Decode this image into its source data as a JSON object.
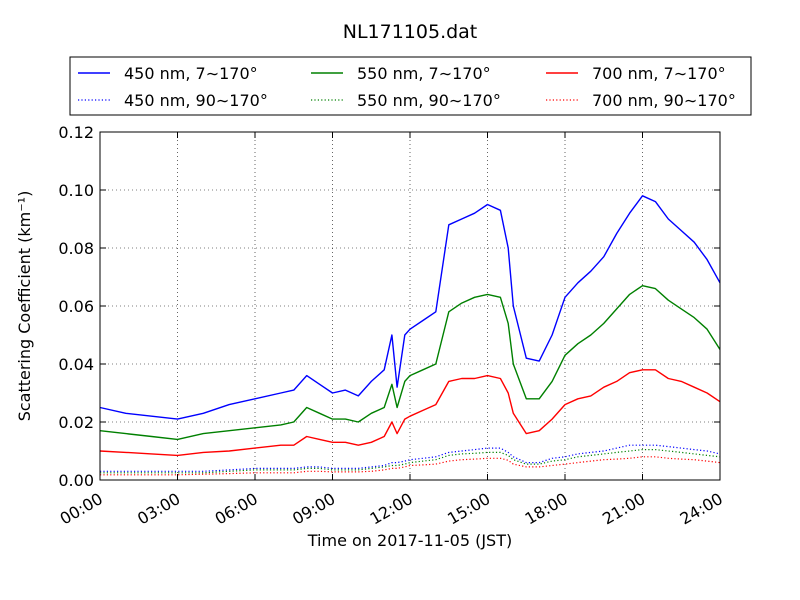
{
  "chart_data": {
    "type": "line",
    "title": "NL171105.dat",
    "xlabel": "Time on 2017-11-05 (JST)",
    "ylabel": "Scattering Coefficient (km⁻¹)",
    "x_unit": "hours",
    "xlim": [
      0,
      24
    ],
    "ylim": [
      0,
      0.12
    ],
    "xticks": [
      0,
      3,
      6,
      9,
      12,
      15,
      18,
      21,
      24
    ],
    "xtick_labels": [
      "00:00",
      "03:00",
      "06:00",
      "09:00",
      "12:00",
      "15:00",
      "18:00",
      "21:00",
      "24:00"
    ],
    "yticks": [
      0,
      0.02,
      0.04,
      0.06,
      0.08,
      0.1,
      0.12
    ],
    "ytick_labels": [
      "0.00",
      "0.02",
      "0.04",
      "0.06",
      "0.08",
      "0.10",
      "0.12"
    ],
    "grid": true,
    "legend_position": "top (above plot), 3 columns",
    "x": [
      0,
      1,
      2,
      3,
      4,
      5,
      6,
      7,
      7.5,
      8,
      8.5,
      9,
      9.5,
      10,
      10.5,
      11,
      11.3,
      11.5,
      11.8,
      12,
      12.5,
      13,
      13.5,
      14,
      14.5,
      15,
      15.5,
      15.8,
      16,
      16.5,
      17,
      17.5,
      18,
      18.5,
      19,
      19.5,
      20,
      20.5,
      21,
      21.5,
      22,
      22.5,
      23,
      23.5,
      24
    ],
    "series": [
      {
        "name": "450 nm, 7∼170°",
        "color": "#0000ff",
        "style": "solid",
        "values": [
          0.025,
          0.023,
          0.022,
          0.021,
          0.023,
          0.026,
          0.028,
          0.03,
          0.031,
          0.036,
          0.033,
          0.03,
          0.031,
          0.029,
          0.034,
          0.038,
          0.05,
          0.032,
          0.05,
          0.052,
          0.055,
          0.058,
          0.088,
          0.09,
          0.092,
          0.095,
          0.093,
          0.08,
          0.06,
          0.042,
          0.041,
          0.05,
          0.063,
          0.068,
          0.072,
          0.077,
          0.085,
          0.092,
          0.098,
          0.096,
          0.09,
          0.086,
          0.082,
          0.076,
          0.068
        ]
      },
      {
        "name": "550 nm, 7∼170°",
        "color": "#008000",
        "style": "solid",
        "values": [
          0.017,
          0.016,
          0.015,
          0.014,
          0.016,
          0.017,
          0.018,
          0.019,
          0.02,
          0.025,
          0.023,
          0.021,
          0.021,
          0.02,
          0.023,
          0.025,
          0.033,
          0.025,
          0.034,
          0.036,
          0.038,
          0.04,
          0.058,
          0.061,
          0.063,
          0.064,
          0.063,
          0.054,
          0.04,
          0.028,
          0.028,
          0.034,
          0.043,
          0.047,
          0.05,
          0.054,
          0.059,
          0.064,
          0.067,
          0.066,
          0.062,
          0.059,
          0.056,
          0.052,
          0.045
        ]
      },
      {
        "name": "700 nm, 7∼170°",
        "color": "#ff0000",
        "style": "solid",
        "values": [
          0.01,
          0.0095,
          0.009,
          0.0085,
          0.0095,
          0.01,
          0.011,
          0.012,
          0.012,
          0.015,
          0.014,
          0.013,
          0.013,
          0.012,
          0.013,
          0.015,
          0.02,
          0.016,
          0.021,
          0.022,
          0.024,
          0.026,
          0.034,
          0.035,
          0.035,
          0.036,
          0.035,
          0.03,
          0.023,
          0.016,
          0.017,
          0.021,
          0.026,
          0.028,
          0.029,
          0.032,
          0.034,
          0.037,
          0.038,
          0.038,
          0.035,
          0.034,
          0.032,
          0.03,
          0.027
        ]
      },
      {
        "name": "450 nm, 90∼170°",
        "color": "#0000ff",
        "style": "dotted",
        "values": [
          0.003,
          0.003,
          0.003,
          0.003,
          0.003,
          0.0035,
          0.004,
          0.004,
          0.004,
          0.0045,
          0.0045,
          0.004,
          0.004,
          0.004,
          0.0045,
          0.005,
          0.006,
          0.006,
          0.0065,
          0.007,
          0.0075,
          0.008,
          0.0095,
          0.01,
          0.0105,
          0.011,
          0.011,
          0.0095,
          0.008,
          0.006,
          0.006,
          0.0075,
          0.008,
          0.009,
          0.0095,
          0.01,
          0.011,
          0.012,
          0.012,
          0.012,
          0.0115,
          0.011,
          0.0105,
          0.01,
          0.009
        ]
      },
      {
        "name": "550 nm, 90∼170°",
        "color": "#008000",
        "style": "dotted",
        "values": [
          0.0025,
          0.0025,
          0.0025,
          0.0025,
          0.0025,
          0.003,
          0.0035,
          0.0035,
          0.0035,
          0.004,
          0.004,
          0.0035,
          0.0035,
          0.0035,
          0.004,
          0.0045,
          0.005,
          0.005,
          0.0055,
          0.006,
          0.0065,
          0.007,
          0.0085,
          0.009,
          0.0092,
          0.0095,
          0.0095,
          0.0085,
          0.007,
          0.0055,
          0.0055,
          0.0065,
          0.007,
          0.008,
          0.0085,
          0.009,
          0.0095,
          0.01,
          0.0105,
          0.0105,
          0.01,
          0.0095,
          0.009,
          0.0085,
          0.008
        ]
      },
      {
        "name": "700 nm, 90∼170°",
        "color": "#ff0000",
        "style": "dotted",
        "values": [
          0.0018,
          0.0018,
          0.0018,
          0.0018,
          0.002,
          0.0022,
          0.0025,
          0.0025,
          0.0025,
          0.003,
          0.003,
          0.0028,
          0.0028,
          0.0028,
          0.003,
          0.0035,
          0.004,
          0.004,
          0.0045,
          0.005,
          0.0052,
          0.0055,
          0.0065,
          0.007,
          0.0072,
          0.0075,
          0.0075,
          0.0068,
          0.0055,
          0.0045,
          0.0045,
          0.005,
          0.0055,
          0.006,
          0.0065,
          0.007,
          0.0072,
          0.0075,
          0.008,
          0.008,
          0.0075,
          0.0072,
          0.007,
          0.0065,
          0.006
        ]
      }
    ]
  }
}
